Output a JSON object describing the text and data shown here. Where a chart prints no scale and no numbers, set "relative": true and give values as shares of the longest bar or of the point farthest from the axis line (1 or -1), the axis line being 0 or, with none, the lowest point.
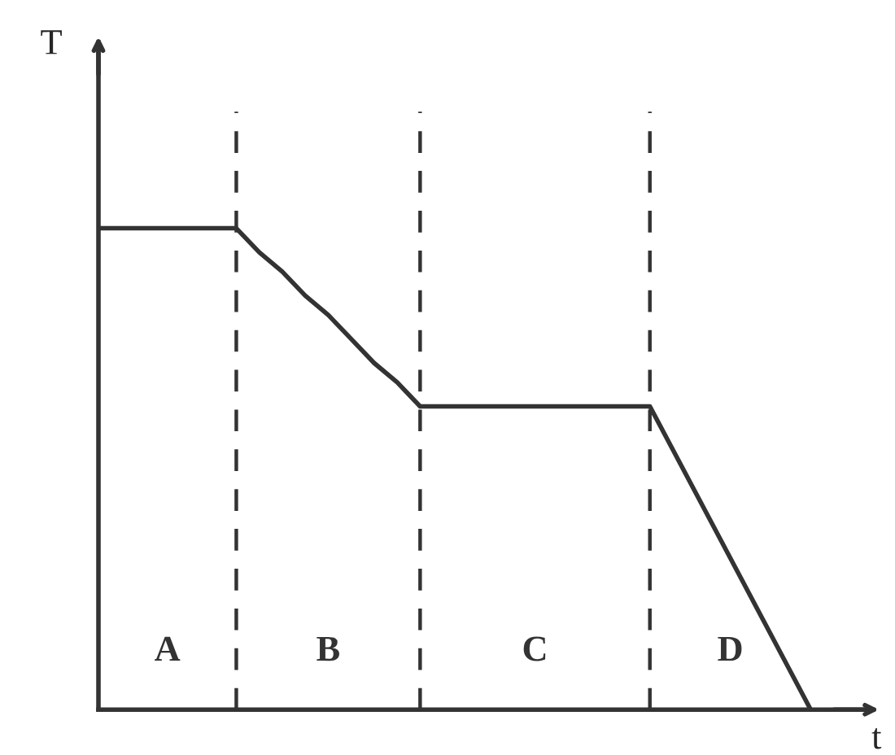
{
  "chart_data": {
    "type": "line",
    "relative": true,
    "xlabel": "t",
    "ylabel": "T",
    "categories": [
      null,
      null,
      null,
      null,
      null,
      null,
      null,
      null,
      null,
      null,
      null,
      null,
      null,
      null,
      null,
      null,
      null,
      null,
      null,
      null,
      null,
      null,
      null,
      null,
      null,
      null,
      null,
      null,
      null,
      null,
      null,
      null
    ],
    "series": [
      {
        "color": "#333333",
        "values": [
          1,
          1,
          1,
          1,
          1,
          1,
          1,
          0.95,
          0.91,
          0.86,
          0.82,
          0.77,
          0.72,
          0.68,
          0.63,
          0.63,
          0.63,
          0.63,
          0.63,
          0.63,
          0.63,
          0.63,
          0.63,
          0.63,
          0.63,
          0.54,
          0.45,
          0.36,
          0.27,
          0.18,
          0.09,
          0
        ]
      }
    ],
    "grid": "x",
    "legend": false,
    "marker": "none",
    "line_style": "solid",
    "annotations": [
      "A",
      "B",
      "C",
      "D"
    ]
  }
}
